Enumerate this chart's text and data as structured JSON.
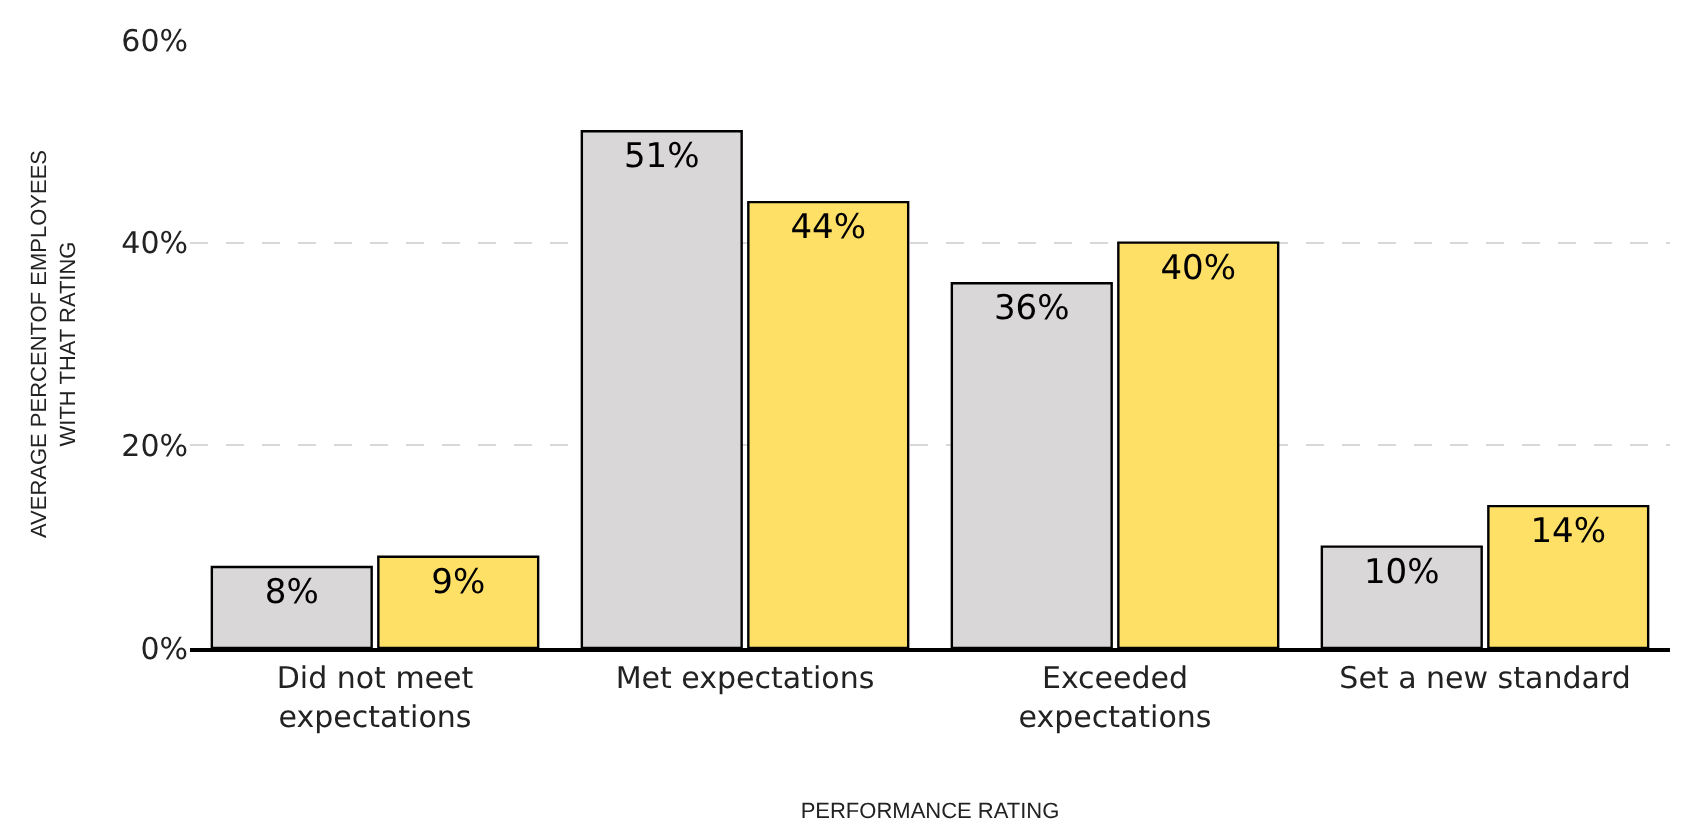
{
  "chart_data": {
    "type": "bar",
    "xlabel": "PERFORMANCE RATING",
    "ylabel": "AVERAGE PERCENTOF EMPLOYEES WITH THAT RATING",
    "categories": [
      "Did not meet expectations",
      "Met expectations",
      "Exceeded expectations",
      "Set a new standard"
    ],
    "series": [
      {
        "color": "#d9d7d8",
        "values": [
          8,
          51,
          36,
          10
        ],
        "value_labels": [
          "8%",
          "51%",
          "36%",
          "10%"
        ]
      },
      {
        "color": "#ffe066",
        "values": [
          9,
          44,
          40,
          14
        ],
        "value_labels": [
          "9%",
          "44%",
          "40%",
          "14%"
        ]
      }
    ],
    "ylim": [
      0,
      60
    ],
    "yticks": [
      {
        "value": 0,
        "label": "0%"
      },
      {
        "value": 20,
        "label": "20%"
      },
      {
        "value": 40,
        "label": "40%"
      },
      {
        "value": 60,
        "label": "60%"
      }
    ],
    "grid": "y",
    "legend": false
  }
}
